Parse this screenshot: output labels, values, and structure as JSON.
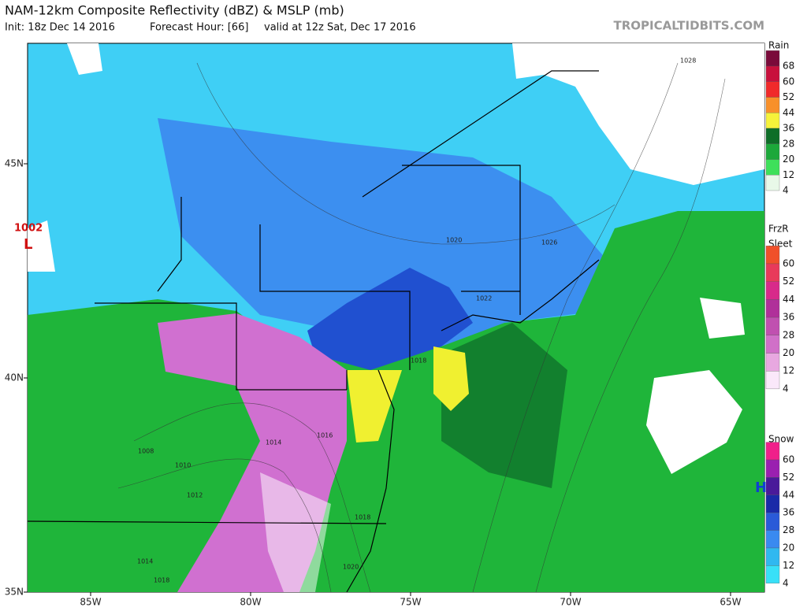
{
  "header": {
    "title": "NAM-12km Composite Reflectivity (dBZ) & MSLP (mb)",
    "init": "Init: 18z Dec 14 2016",
    "forecast_hour": "Forecast Hour: [66]",
    "valid": "valid at 12z Sat, Dec 17 2016",
    "watermark": "TROPICALTIDBITS.COM"
  },
  "axes": {
    "latitudes": [
      {
        "label": "45N",
        "value": 45
      },
      {
        "label": "40N",
        "value": 40
      },
      {
        "label": "35N",
        "value": 35
      }
    ],
    "longitudes": [
      {
        "label": "85W",
        "value": -85
      },
      {
        "label": "80W",
        "value": -80
      },
      {
        "label": "75W",
        "value": -75
      },
      {
        "label": "70W",
        "value": -70
      },
      {
        "label": "65W",
        "value": -65
      }
    ]
  },
  "legends": [
    {
      "title": [
        "Rain"
      ],
      "levels": [
        68,
        60,
        52,
        44,
        36,
        28,
        20,
        12,
        4
      ],
      "colors": [
        "#7a0a3a",
        "#c8103c",
        "#f02a2a",
        "#f8902a",
        "#f6f23a",
        "#0e6e28",
        "#1ca83a",
        "#3ee05a",
        "#e8f8e8"
      ]
    },
    {
      "title": [
        "FrzR",
        "Sleet"
      ],
      "levels": [
        60,
        52,
        44,
        36,
        28,
        20,
        12,
        4
      ],
      "colors": [
        "#f0502a",
        "#e83a5a",
        "#d82a8a",
        "#b0309a",
        "#c050b0",
        "#d070c8",
        "#e8a8e0",
        "#fae8fa"
      ]
    },
    {
      "title": [
        "Snow"
      ],
      "levels": [
        60,
        52,
        44,
        36,
        28,
        20,
        12,
        4
      ],
      "colors": [
        "#f0208a",
        "#9a20b0",
        "#4a1a9a",
        "#1a2aa8",
        "#2a5ad8",
        "#3a8af0",
        "#30b8f0",
        "#38e0f8"
      ]
    }
  ],
  "pressure_centers": [
    {
      "value": "1002",
      "letter": "L"
    },
    {
      "letter": "H"
    }
  ],
  "isobar_labels": [
    "1028",
    "1020",
    "1026",
    "1022",
    "1018",
    "1016",
    "1014",
    "1008",
    "1010",
    "1012",
    "1018",
    "1014",
    "1018",
    "1020"
  ]
}
